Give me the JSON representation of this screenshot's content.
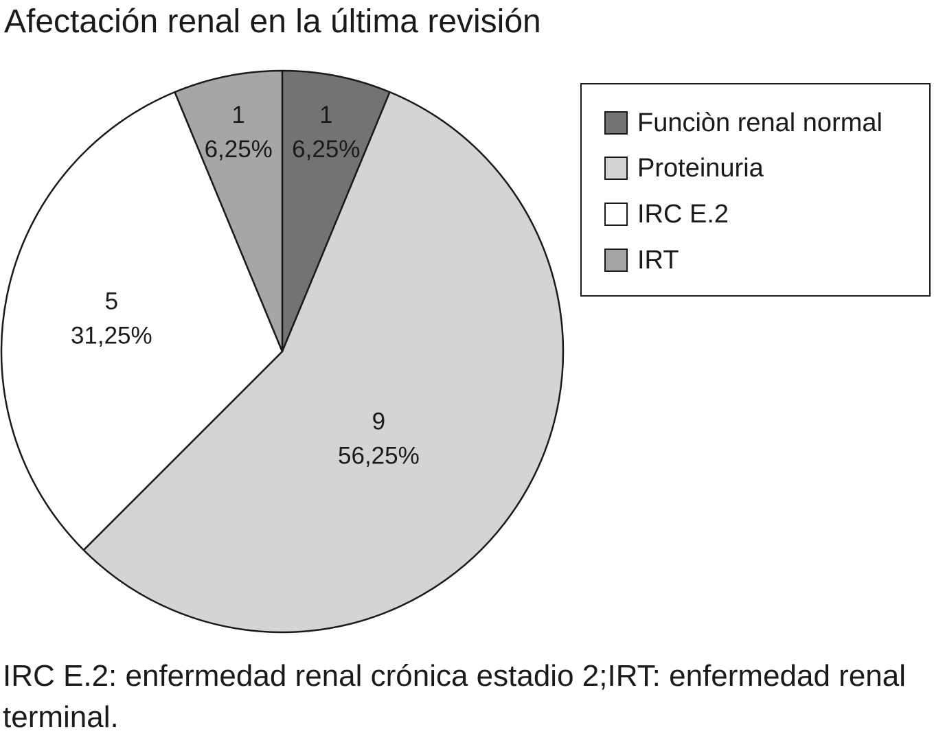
{
  "chart_data": {
    "type": "pie",
    "title": "Afectación renal en la última revisión",
    "categories": [
      "Funciòn renal normal",
      "Proteinuria",
      "IRC E.2",
      "IRT"
    ],
    "values": [
      1,
      9,
      5,
      1
    ],
    "percent_labels": [
      "6,25%",
      "56,25%",
      "31,25%",
      "6,25%"
    ],
    "colors": [
      "#737373",
      "#d4d4d4",
      "#ffffff",
      "#a6a6a6"
    ],
    "start_angle": "12 o'clock",
    "direction": "clockwise",
    "legend": {
      "position": "top-right"
    }
  },
  "footnote": "IRC E.2: enfermedad renal crónica estadio 2;IRT: enfermedad renal terminal."
}
